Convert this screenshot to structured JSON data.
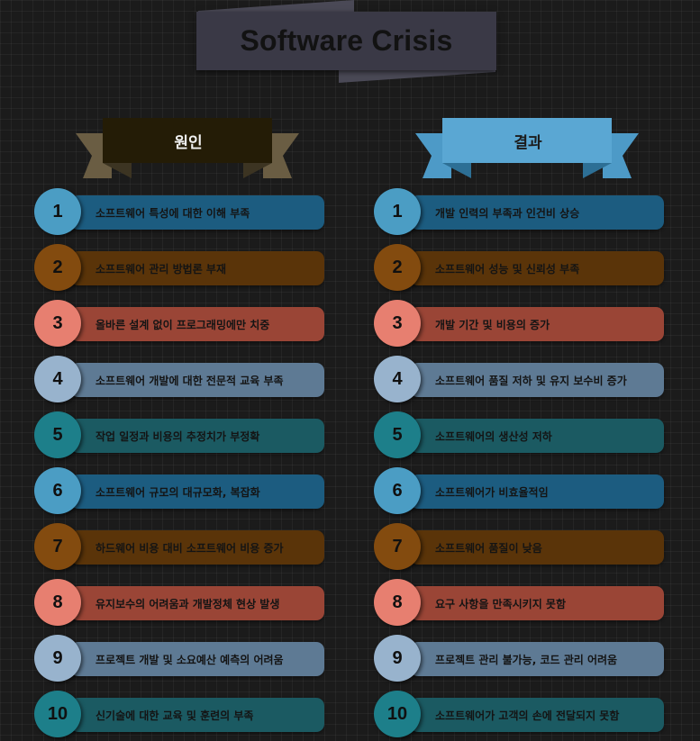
{
  "title": "Software Crisis",
  "colors": {
    "background": "#1b1b1b",
    "title_box": "#3a3946",
    "blue": "#1c5c80",
    "brown": "#5a3409",
    "salmon": "#9a4536",
    "slate": "#5e7a94",
    "teal": "#1b5a62"
  },
  "causes": {
    "header": "원인",
    "items": [
      {
        "num": "1",
        "text": "소프트웨어 특성에 대한 이해 부족"
      },
      {
        "num": "2",
        "text": "소프트웨어 관리 방법론 부재"
      },
      {
        "num": "3",
        "text": "올바른 설계 없이 프로그래밍에만 치중"
      },
      {
        "num": "4",
        "text": "소프트웨어 개발에 대한 전문적 교육 부족"
      },
      {
        "num": "5",
        "text": "작업 일정과 비용의 추정치가 부정확"
      },
      {
        "num": "6",
        "text": "소프트웨어 규모의 대규모화, 복잡화"
      },
      {
        "num": "7",
        "text": "하드웨어 비용 대비 소프트웨어 비용 증가"
      },
      {
        "num": "8",
        "text": "유지보수의 어려움과 개발정체 현상 발생"
      },
      {
        "num": "9",
        "text": "프로젝트 개발 및 소요예산 예측의 어려움"
      },
      {
        "num": "10",
        "text": "신기술에 대한 교육 및 훈련의 부족"
      }
    ]
  },
  "results": {
    "header": "결과",
    "items": [
      {
        "num": "1",
        "text": "개발 인력의 부족과 인건비 상승"
      },
      {
        "num": "2",
        "text": "소프트웨어 성능 및 신뢰성 부족"
      },
      {
        "num": "3",
        "text": "개발 기간 및 비용의 증가"
      },
      {
        "num": "4",
        "text": "소프트웨어 품질 저하 및 유지 보수비 증가"
      },
      {
        "num": "5",
        "text": "소프트웨어의 생산성 저하"
      },
      {
        "num": "6",
        "text": "소프트웨어가 비효율적임"
      },
      {
        "num": "7",
        "text": "소프트웨어 품질이 낮음"
      },
      {
        "num": "8",
        "text": "요구 사항을 만족시키지 못함"
      },
      {
        "num": "9",
        "text": "프로젝트 관리 불가능, 코드 관리 어려움"
      },
      {
        "num": "10",
        "text": "소프트웨어가 고객의 손에 전달되지 못함"
      }
    ]
  }
}
